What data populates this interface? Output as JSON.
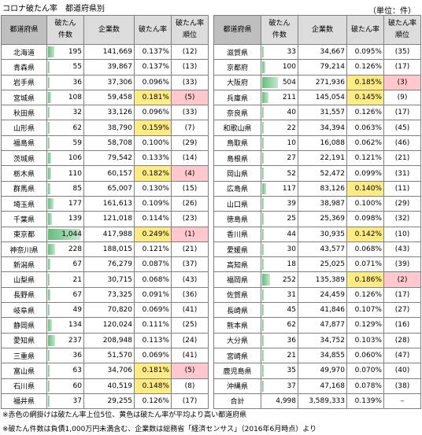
{
  "title": "コロナ破たん率　都道府県別",
  "unit": "（単位：件）",
  "headers": {
    "pref": "都道府県",
    "count": "破たん\n件数",
    "companies": "企業数",
    "rate": "破たん率",
    "rank": "破たん率\n順位"
  },
  "max_count": 1044,
  "left_rows": [
    {
      "pref": "北海道",
      "count": "195",
      "companies": "141,669",
      "rate": "0.137%",
      "rank": "(12)",
      "count_value": 195,
      "hl": "",
      "rhl": ""
    },
    {
      "pref": "青森県",
      "count": "55",
      "companies": "39,867",
      "rate": "0.137%",
      "rank": "(13)",
      "count_value": 55,
      "hl": "",
      "rhl": ""
    },
    {
      "pref": "岩手県",
      "count": "36",
      "companies": "37,306",
      "rate": "0.096%",
      "rank": "(33)",
      "count_value": 36,
      "hl": "",
      "rhl": ""
    },
    {
      "pref": "宮城県",
      "count": "108",
      "companies": "59,458",
      "rate": "0.181%",
      "rank": "(5)",
      "count_value": 108,
      "hl": "yellow",
      "rhl": "pink"
    },
    {
      "pref": "秋田県",
      "count": "32",
      "companies": "33,126",
      "rate": "0.096%",
      "rank": "(33)",
      "count_value": 32,
      "hl": "",
      "rhl": ""
    },
    {
      "pref": "山形県",
      "count": "62",
      "companies": "38,790",
      "rate": "0.159%",
      "rank": "(7)",
      "count_value": 62,
      "hl": "yellow",
      "rhl": ""
    },
    {
      "pref": "福島県",
      "count": "59",
      "companies": "58,708",
      "rate": "0.100%",
      "rank": "(29)",
      "count_value": 59,
      "hl": "",
      "rhl": ""
    },
    {
      "pref": "茨城県",
      "count": "106",
      "companies": "79,542",
      "rate": "0.133%",
      "rank": "(14)",
      "count_value": 106,
      "hl": "",
      "rhl": ""
    },
    {
      "pref": "栃木県",
      "count": "110",
      "companies": "60,157",
      "rate": "0.182%",
      "rank": "(4)",
      "count_value": 110,
      "hl": "yellow",
      "rhl": "pink"
    },
    {
      "pref": "群馬県",
      "count": "85",
      "companies": "65,007",
      "rate": "0.130%",
      "rank": "(15)",
      "count_value": 85,
      "hl": "",
      "rhl": ""
    },
    {
      "pref": "埼玉県",
      "count": "177",
      "companies": "161,613",
      "rate": "0.109%",
      "rank": "(26)",
      "count_value": 177,
      "hl": "",
      "rhl": ""
    },
    {
      "pref": "千葉県",
      "count": "139",
      "companies": "121,018",
      "rate": "0.114%",
      "rank": "(23)",
      "count_value": 139,
      "hl": "",
      "rhl": ""
    },
    {
      "pref": "東京都",
      "count": "1,044",
      "companies": "417,988",
      "rate": "0.249%",
      "rank": "(1)",
      "count_value": 1044,
      "hl": "yellow",
      "rhl": "pink"
    },
    {
      "pref": "神奈川県",
      "count": "228",
      "companies": "188,015",
      "rate": "0.121%",
      "rank": "(21)",
      "count_value": 228,
      "hl": "",
      "rhl": ""
    },
    {
      "pref": "新潟県",
      "count": "67",
      "companies": "76,279",
      "rate": "0.087%",
      "rank": "(37)",
      "count_value": 67,
      "hl": "",
      "rhl": ""
    },
    {
      "pref": "山梨県",
      "count": "21",
      "companies": "30,715",
      "rate": "0.068%",
      "rank": "(43)",
      "count_value": 21,
      "hl": "",
      "rhl": ""
    },
    {
      "pref": "長野県",
      "count": "67",
      "companies": "73,325",
      "rate": "0.091%",
      "rank": "(36)",
      "count_value": 67,
      "hl": "",
      "rhl": ""
    },
    {
      "pref": "岐阜県",
      "count": "49",
      "companies": "70,820",
      "rate": "0.069%",
      "rank": "(41)",
      "count_value": 49,
      "hl": "",
      "rhl": ""
    },
    {
      "pref": "静岡県",
      "count": "134",
      "companies": "120,024",
      "rate": "0.111%",
      "rank": "(25)",
      "count_value": 134,
      "hl": "",
      "rhl": ""
    },
    {
      "pref": "愛知県",
      "count": "237",
      "companies": "208,948",
      "rate": "0.113%",
      "rank": "(24)",
      "count_value": 237,
      "hl": "",
      "rhl": ""
    },
    {
      "pref": "三重県",
      "count": "36",
      "companies": "51,570",
      "rate": "0.069%",
      "rank": "(41)",
      "count_value": 36,
      "hl": "",
      "rhl": ""
    },
    {
      "pref": "富山県",
      "count": "63",
      "companies": "34,706",
      "rate": "0.181%",
      "rank": "(5)",
      "count_value": 63,
      "hl": "yellow",
      "rhl": "pink"
    },
    {
      "pref": "石川県",
      "count": "60",
      "companies": "40,519",
      "rate": "0.148%",
      "rank": "(8)",
      "count_value": 60,
      "hl": "yellow",
      "rhl": ""
    },
    {
      "pref": "福井県",
      "count": "37",
      "companies": "29,255",
      "rate": "0.126%",
      "rank": "(17)",
      "count_value": 37,
      "hl": "",
      "rhl": ""
    }
  ],
  "right_rows": [
    {
      "pref": "滋賀県",
      "count": "33",
      "companies": "34,667",
      "rate": "0.095%",
      "rank": "(35)",
      "count_value": 33,
      "hl": "",
      "rhl": ""
    },
    {
      "pref": "京都府",
      "count": "100",
      "companies": "79,214",
      "rate": "0.126%",
      "rank": "(17)",
      "count_value": 100,
      "hl": "",
      "rhl": ""
    },
    {
      "pref": "大阪府",
      "count": "504",
      "companies": "271,936",
      "rate": "0.185%",
      "rank": "(3)",
      "count_value": 504,
      "hl": "yellow",
      "rhl": "pink"
    },
    {
      "pref": "兵庫県",
      "count": "211",
      "companies": "145,054",
      "rate": "0.145%",
      "rank": "(9)",
      "count_value": 211,
      "hl": "yellow",
      "rhl": ""
    },
    {
      "pref": "奈良県",
      "count": "40",
      "companies": "31,557",
      "rate": "0.126%",
      "rank": "(17)",
      "count_value": 40,
      "hl": "",
      "rhl": ""
    },
    {
      "pref": "和歌山県",
      "count": "22",
      "companies": "34,394",
      "rate": "0.063%",
      "rank": "(45)",
      "count_value": 22,
      "hl": "",
      "rhl": ""
    },
    {
      "pref": "鳥取県",
      "count": "10",
      "companies": "16,088",
      "rate": "0.062%",
      "rank": "(46)",
      "count_value": 10,
      "hl": "",
      "rhl": ""
    },
    {
      "pref": "島根県",
      "count": "27",
      "companies": "22,191",
      "rate": "0.121%",
      "rank": "(21)",
      "count_value": 27,
      "hl": "",
      "rhl": ""
    },
    {
      "pref": "岡山県",
      "count": "52",
      "companies": "52,472",
      "rate": "0.099%",
      "rank": "(31)",
      "count_value": 52,
      "hl": "",
      "rhl": ""
    },
    {
      "pref": "広島県",
      "count": "117",
      "companies": "83,126",
      "rate": "0.140%",
      "rank": "(11)",
      "count_value": 117,
      "hl": "yellow",
      "rhl": ""
    },
    {
      "pref": "山口県",
      "count": "39",
      "companies": "38,987",
      "rate": "0.100%",
      "rank": "(29)",
      "count_value": 39,
      "hl": "",
      "rhl": ""
    },
    {
      "pref": "徳島県",
      "count": "25",
      "companies": "25,369",
      "rate": "0.098%",
      "rank": "(32)",
      "count_value": 25,
      "hl": "",
      "rhl": ""
    },
    {
      "pref": "香川県",
      "count": "44",
      "companies": "30,935",
      "rate": "0.142%",
      "rank": "(10)",
      "count_value": 44,
      "hl": "yellow",
      "rhl": ""
    },
    {
      "pref": "愛媛県",
      "count": "30",
      "companies": "43,577",
      "rate": "0.068%",
      "rank": "(43)",
      "count_value": 30,
      "hl": "",
      "rhl": ""
    },
    {
      "pref": "高知県",
      "count": "18",
      "companies": "25,025",
      "rate": "0.071%",
      "rank": "(39)",
      "count_value": 18,
      "hl": "",
      "rhl": ""
    },
    {
      "pref": "福岡県",
      "count": "252",
      "companies": "135,389",
      "rate": "0.186%",
      "rank": "(2)",
      "count_value": 252,
      "hl": "yellow",
      "rhl": "pink"
    },
    {
      "pref": "佐賀県",
      "count": "31",
      "companies": "24,459",
      "rate": "0.126%",
      "rank": "(17)",
      "count_value": 31,
      "hl": "",
      "rhl": ""
    },
    {
      "pref": "長崎県",
      "count": "45",
      "companies": "41,846",
      "rate": "0.107%",
      "rank": "(27)",
      "count_value": 45,
      "hl": "",
      "rhl": ""
    },
    {
      "pref": "熊本県",
      "count": "62",
      "companies": "47,877",
      "rate": "0.129%",
      "rank": "(16)",
      "count_value": 62,
      "hl": "",
      "rhl": ""
    },
    {
      "pref": "大分県",
      "count": "36",
      "companies": "34,752",
      "rate": "0.103%",
      "rank": "(28)",
      "count_value": 36,
      "hl": "",
      "rhl": ""
    },
    {
      "pref": "宮崎県",
      "count": "21",
      "companies": "34,855",
      "rate": "0.060%",
      "rank": "(47)",
      "count_value": 21,
      "hl": "",
      "rhl": ""
    },
    {
      "pref": "鹿児島県",
      "count": "35",
      "companies": "49,970",
      "rate": "0.070%",
      "rank": "(40)",
      "count_value": 35,
      "hl": "",
      "rhl": ""
    },
    {
      "pref": "沖縄県",
      "count": "37",
      "companies": "47,168",
      "rate": "0.078%",
      "rank": "(38)",
      "count_value": 37,
      "hl": "",
      "rhl": ""
    }
  ],
  "total": {
    "pref": "合計",
    "count": "4,998",
    "companies": "3,589,333",
    "rate": "0.139%",
    "rank": "–"
  },
  "notes": [
    "※赤色の網掛けは破たん率上位5位、黄色は破たん率が平均より高い都道府県",
    "※破たん件数は負債1,000万円未満含む、企業数は総務省「経済センサス」（2016年6月時点）より"
  ],
  "colors": {
    "yellow": "#ffeb84",
    "pink": "#ffc7ce",
    "bar": "#63be7b",
    "header": "#dcdcdc"
  }
}
